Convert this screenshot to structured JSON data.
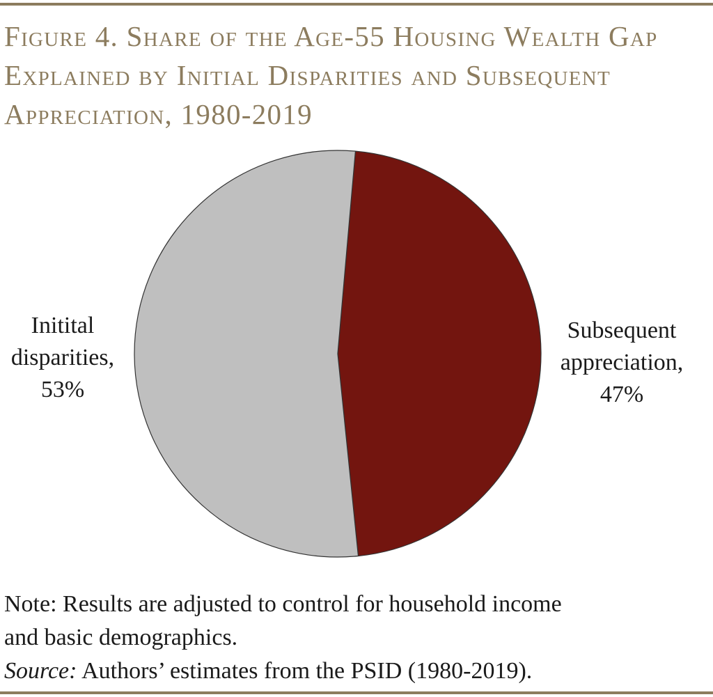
{
  "title_lines": [
    "Figure 4. Share of the Age-55 Housing Wealth Gap",
    "Explained by Initial Disparities and Subsequent",
    "Appreciation, 1980-2019"
  ],
  "chart_data": {
    "type": "pie",
    "title": "Figure 4. Share of the Age-55 Housing Wealth Gap Explained by Initial Disparities and Subsequent Appreciation, 1980-2019",
    "slices": [
      {
        "label_lines": [
          "Subsequent",
          "appreciation,",
          "47%"
        ],
        "value": 47,
        "color": "#73150f"
      },
      {
        "label_lines": [
          "Initital",
          "disparities,",
          "53%"
        ],
        "value": 53,
        "color": "#bfbfbf"
      }
    ],
    "start_angle_deg": 5,
    "direction": "clockwise",
    "edge_color": "#333333"
  },
  "note": {
    "lines": [
      "Note: Results are adjusted to control for household income",
      "and basic demographics."
    ],
    "source_prefix": "Source:",
    "source_text": " Authors’ estimates from the PSID (1980-2019)."
  },
  "colors": {
    "accent": "#8c7c5e"
  }
}
